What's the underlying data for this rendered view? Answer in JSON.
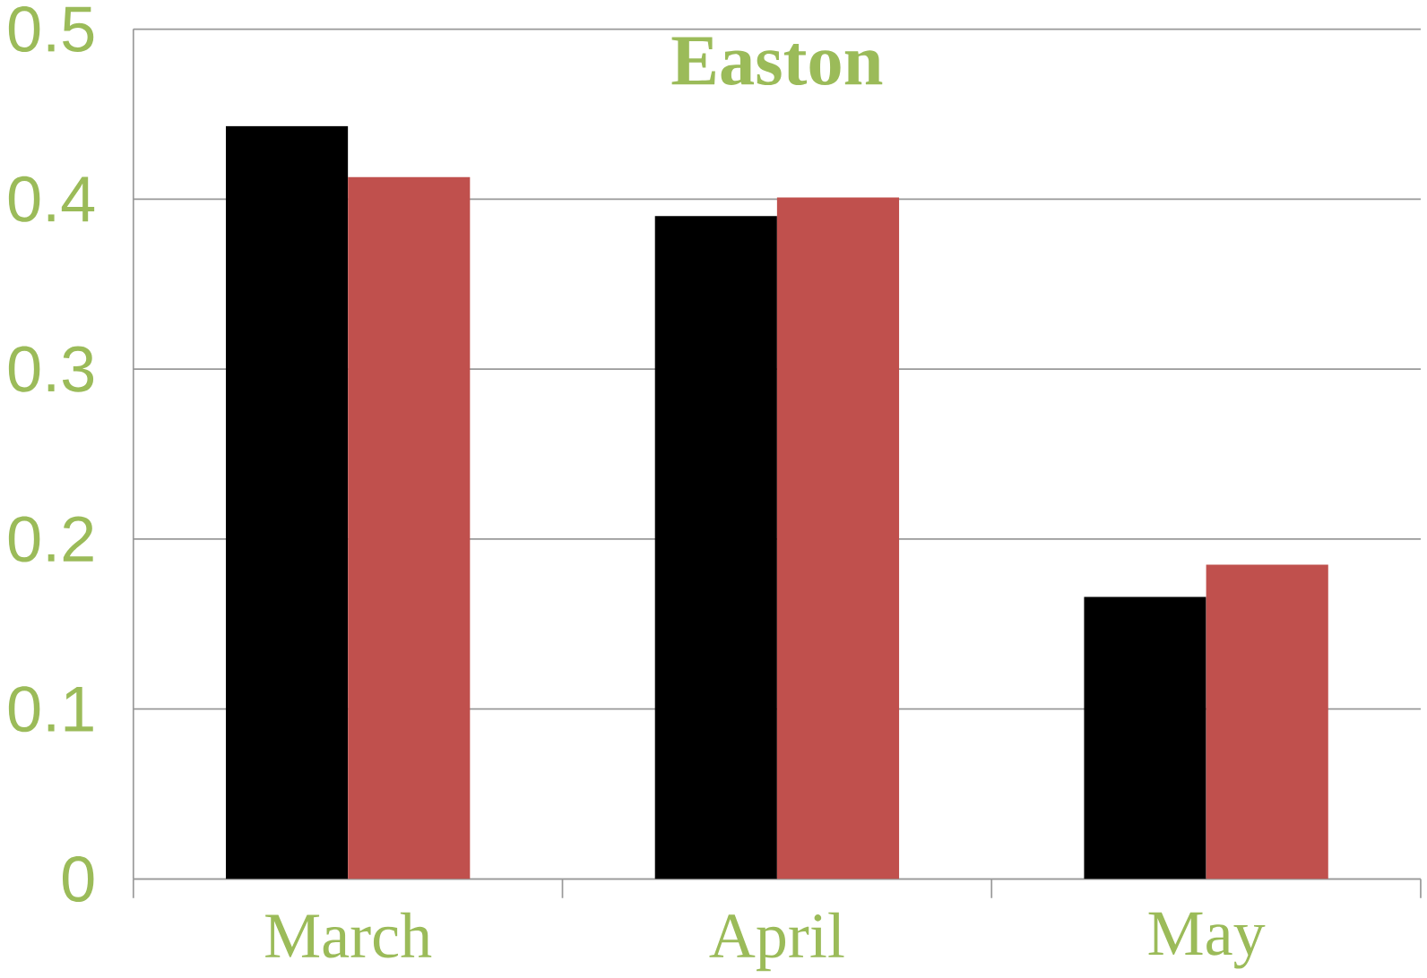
{
  "chart_data": {
    "type": "bar",
    "title": "Easton",
    "categories": [
      "March",
      "April",
      "May"
    ],
    "series": [
      {
        "color": "#000000",
        "values": [
          0.443,
          0.39,
          0.166
        ]
      },
      {
        "color": "#c0504d",
        "values": [
          0.413,
          0.401,
          0.185
        ]
      }
    ],
    "ylim": [
      0,
      0.5
    ],
    "yticks": [
      0,
      0.1,
      0.2,
      0.3,
      0.4,
      0.5
    ],
    "grid": "y"
  }
}
